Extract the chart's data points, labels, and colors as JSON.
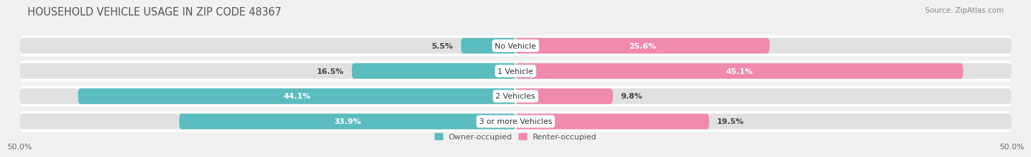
{
  "title": "HOUSEHOLD VEHICLE USAGE IN ZIP CODE 48367",
  "source_text": "Source: ZipAtlas.com",
  "categories": [
    "No Vehicle",
    "1 Vehicle",
    "2 Vehicles",
    "3 or more Vehicles"
  ],
  "owner_values": [
    5.5,
    16.5,
    44.1,
    33.9
  ],
  "renter_values": [
    25.6,
    45.1,
    9.8,
    19.5
  ],
  "owner_color": "#5bbcbf",
  "renter_color": "#f08aaa",
  "background_color": "#f0f0f0",
  "bar_bg_color": "#e0e0e0",
  "white_color": "#ffffff",
  "xlim": [
    -50,
    50
  ],
  "xticklabels": [
    "50.0%",
    "50.0%"
  ],
  "bar_height": 0.62,
  "bg_bar_height": 0.82,
  "legend_owner": "Owner-occupied",
  "legend_renter": "Renter-occupied",
  "title_fontsize": 10.5,
  "source_fontsize": 7.5,
  "label_fontsize": 8,
  "category_fontsize": 8,
  "legend_fontsize": 8,
  "tick_fontsize": 8,
  "row_sep_color": "#d0d0d0"
}
